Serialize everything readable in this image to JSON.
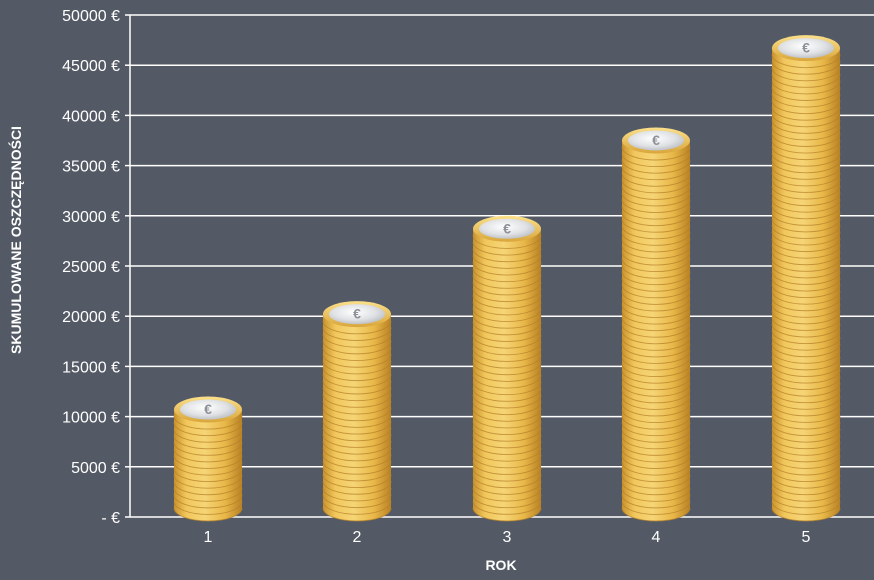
{
  "colors": {
    "background": "#545a65",
    "gridline": "#ffffff",
    "coin": "#e3b44a",
    "coin_face": "#e6e7ea",
    "text": "#ffffff"
  },
  "chart_data": {
    "type": "bar",
    "style": "stacked-coin-columns",
    "categories": [
      "1",
      "2",
      "3",
      "4",
      "5"
    ],
    "values": [
      12000,
      21500,
      30000,
      38800,
      48000
    ],
    "ylim": [
      0,
      50000
    ],
    "yticks": [
      {
        "value": 0,
        "label": "- €"
      },
      {
        "value": 5000,
        "label": "5000 €"
      },
      {
        "value": 10000,
        "label": "10000 €"
      },
      {
        "value": 15000,
        "label": "15000 €"
      },
      {
        "value": 20000,
        "label": "20000 €"
      },
      {
        "value": 25000,
        "label": "25000 €"
      },
      {
        "value": 30000,
        "label": "30000 €"
      },
      {
        "value": 35000,
        "label": "35000 €"
      },
      {
        "value": 40000,
        "label": "40000 €"
      },
      {
        "value": 45000,
        "label": "45000 €"
      },
      {
        "value": 50000,
        "label": "50000 €"
      }
    ],
    "xlabel": "ROK",
    "ylabel": "SKUMULOWANE OSZCZĘDNOŚCI",
    "grid": true,
    "legend": "none"
  }
}
